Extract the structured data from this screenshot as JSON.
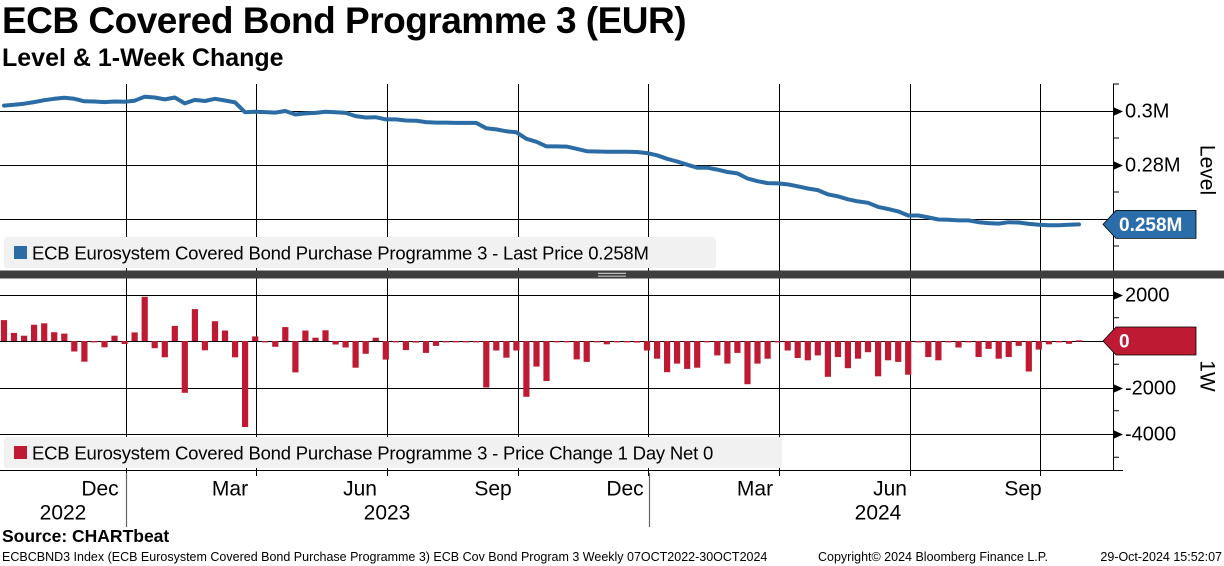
{
  "header": {
    "title": "ECB Covered Bond Programme 3 (EUR)",
    "subtitle": "Level & 1-Week Change"
  },
  "source": {
    "text": "Source: CHARTbeat"
  },
  "footer": {
    "left": "ECBCBND3 Index (ECB Eurosystem Covered Bond Purchase Programme 3) ECB Cov Bond Program 3  Weekly 07OCT2022-30OCT2024",
    "center": "Copyright© 2024 Bloomberg Finance L.P.",
    "right": "29-Oct-2024 15:52:07"
  },
  "colors": {
    "line": "#2b6ca5",
    "bar": "#be1a34",
    "level_tag_bg": "#2b6da8",
    "change_tag_bg": "#be1a34",
    "tag_text": "#ffffff",
    "grid": "#000000",
    "legend_bg": "#f1f1f1",
    "divider": "#3e3e3e",
    "divider_handle": "#c0c0c0",
    "year_separator": "#666666"
  },
  "panels": {
    "level": {
      "axis_label": "Level",
      "legend_text": "ECB Eurosystem Covered Bond Purchase Programme 3 - Last Price",
      "legend_value": "0.258M",
      "gridlines": [
        {
          "v": 300,
          "label": "0.3M"
        },
        {
          "v": 280,
          "label": "0.28M"
        },
        {
          "v": 260,
          "label": ""
        }
      ],
      "minor_ticks": [
        310,
        290,
        270,
        250
      ],
      "tag": {
        "text": "0.258M",
        "value": 258.0
      }
    },
    "change": {
      "axis_label": "1W",
      "legend_text": "ECB Eurosystem Covered Bond Purchase Programme 3 - Price Change 1 Day Net",
      "legend_value": "0",
      "gridlines": [
        {
          "v": 2000,
          "label": "2000"
        },
        {
          "v": 0,
          "label": ""
        },
        {
          "v": -2000,
          "label": "-2000"
        },
        {
          "v": -4000,
          "label": "-4000"
        }
      ],
      "minor_ticks": [
        1000,
        -1000,
        -3000,
        -5000
      ],
      "tag": {
        "text": "0",
        "value": 0
      }
    }
  },
  "xaxis": {
    "grid_x": [
      126,
      256,
      387,
      518,
      648,
      779,
      910,
      1040
    ],
    "months": [
      {
        "label": "Dec",
        "x": 100
      },
      {
        "label": "Mar",
        "x": 230
      },
      {
        "label": "Jun",
        "x": 360
      },
      {
        "label": "Sep",
        "x": 493
      },
      {
        "label": "Dec",
        "x": 625
      },
      {
        "label": "Mar",
        "x": 755
      },
      {
        "label": "Jun",
        "x": 890
      },
      {
        "label": "Sep",
        "x": 1023
      }
    ],
    "years": [
      {
        "label": "2022",
        "x": 63
      },
      {
        "label": "2023",
        "x": 387
      },
      {
        "label": "2024",
        "x": 878
      }
    ],
    "year_separators": [
      126,
      649
    ]
  },
  "chart_data": [
    {
      "type": "line",
      "title": "Level",
      "series_name": "ECB Eurosystem Covered Bond Purchase Programme 3 - Last Price",
      "unit": "EUR (M = millions shown as 0.xM)",
      "x_frequency": "weekly",
      "x_range": [
        "07OCT2022",
        "30OCT2024"
      ],
      "last_value_label": "0.258M",
      "ylim_thousands": [
        248,
        312
      ],
      "ytick_labels": [
        "0.3M",
        "0.28M"
      ],
      "legend_position": "bottom-left strip",
      "grid": "on",
      "values_thousands": [
        302.0,
        302.3,
        302.7,
        303.3,
        304.0,
        304.5,
        304.9,
        304.5,
        303.6,
        303.5,
        303.3,
        303.5,
        303.4,
        303.8,
        305.3,
        305.0,
        304.3,
        305.0,
        302.8,
        304.1,
        303.7,
        304.5,
        303.9,
        303.2,
        299.5,
        299.7,
        299.6,
        299.4,
        300.0,
        298.7,
        299.1,
        299.3,
        299.7,
        299.5,
        299.3,
        298.1,
        297.6,
        297.7,
        296.9,
        296.9,
        296.5,
        296.4,
        295.9,
        295.7,
        295.7,
        295.6,
        295.6,
        295.6,
        293.6,
        293.2,
        292.5,
        292.1,
        289.7,
        288.6,
        286.9,
        286.9,
        286.8,
        286.0,
        285.1,
        285.0,
        284.9,
        284.9,
        284.9,
        284.8,
        284.4,
        283.6,
        282.3,
        281.3,
        280.1,
        279.0,
        279.0,
        278.3,
        277.4,
        276.9,
        275.0,
        274.0,
        273.3,
        273.2,
        272.8,
        272.1,
        271.3,
        270.7,
        269.1,
        268.4,
        267.3,
        266.5,
        266.0,
        264.5,
        263.7,
        262.8,
        261.3,
        261.3,
        260.6,
        259.8,
        259.7,
        259.5,
        259.5,
        258.8,
        258.5,
        258.3,
        258.8,
        258.7,
        258.2,
        257.9,
        257.7,
        257.7,
        257.9,
        258.0
      ]
    },
    {
      "type": "bar",
      "title": "1W",
      "series_name": "ECB Eurosystem Covered Bond Purchase Programme 3 - Price Change 1 Day Net",
      "x_frequency": "weekly",
      "x_range": [
        "07OCT2022",
        "30OCT2024"
      ],
      "last_value_label": "0",
      "ylim": [
        -5500,
        2600
      ],
      "yticks": [
        2000,
        0,
        -2000,
        -4000
      ],
      "grid": "on",
      "values": [
        900,
        350,
        230,
        700,
        760,
        380,
        320,
        -450,
        -890,
        -30,
        -270,
        230,
        -130,
        370,
        1900,
        -310,
        -700,
        650,
        -2230,
        1370,
        -400,
        850,
        450,
        -700,
        -3700,
        200,
        -50,
        -250,
        600,
        -1350,
        450,
        140,
        460,
        -150,
        -280,
        -1150,
        -550,
        140,
        -800,
        -20,
        -390,
        -70,
        -510,
        -210,
        -30,
        -30,
        -15,
        -15,
        -2000,
        -410,
        -720,
        -410,
        -2400,
        -1100,
        -1720,
        -30,
        -20,
        -790,
        -900,
        -60,
        -140,
        -10,
        -50,
        -70,
        -410,
        -760,
        -1340,
        -970,
        -1200,
        -1150,
        -30,
        -620,
        -970,
        -510,
        -1860,
        -970,
        -760,
        -40,
        -410,
        -730,
        -830,
        -620,
        -1540,
        -690,
        -1170,
        -760,
        -480,
        -1520,
        -830,
        -900,
        -1450,
        -30,
        -690,
        -830,
        -30,
        -280,
        -10,
        -690,
        -340,
        -760,
        -690,
        -210,
        -1310,
        -370,
        -140,
        -60,
        -120,
        0
      ]
    }
  ]
}
